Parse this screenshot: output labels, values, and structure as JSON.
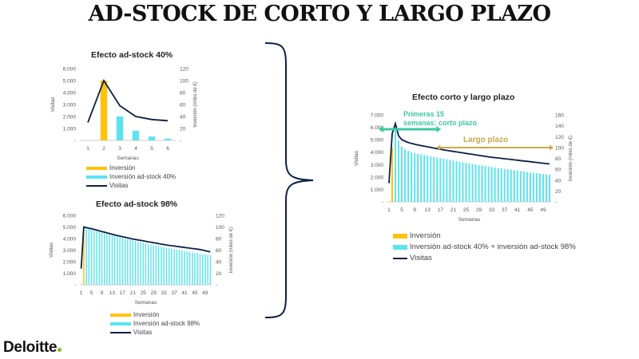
{
  "title": "AD-STOCK DE CORTO Y LARGO PLAZO",
  "logo": {
    "text": "Deloitte"
  },
  "colors": {
    "investment": "#FFC20E",
    "adstock": "#5BE3F0",
    "visits": "#0D1F45",
    "short": "#3CC8A0",
    "long": "#C8A84B"
  },
  "chart_data": [
    {
      "id": "c1",
      "type": "bar",
      "title": "Efecto ad-stock 40%",
      "xlabel": "Semanas",
      "ylabel": "Visitas",
      "y2label": "Inversión (miles de €)",
      "ylim": [
        0,
        6000
      ],
      "y2lim": [
        0,
        120
      ],
      "yticks": [
        "-",
        "1.000",
        "2.000",
        "3.000",
        "4.000",
        "5.000",
        "6.000"
      ],
      "y2ticks": [
        "-",
        "20",
        "40",
        "60",
        "80",
        "100",
        "120"
      ],
      "x": [
        1,
        2,
        3,
        4,
        5,
        6
      ],
      "xticks": [
        "1",
        "2",
        "3",
        "4",
        "5",
        "6"
      ],
      "series": [
        {
          "name": "Inversión",
          "axis": "right",
          "kind": "bar",
          "values": [
            0,
            100,
            0,
            0,
            0,
            0
          ]
        },
        {
          "name": "Inversión ad-stock 40%",
          "axis": "right",
          "kind": "bar",
          "values": [
            0,
            0,
            40,
            16,
            6.4,
            2.6
          ]
        },
        {
          "name": "Visitas",
          "axis": "left",
          "kind": "line",
          "values": [
            1500,
            5000,
            2900,
            2000,
            1750,
            1650
          ]
        }
      ]
    },
    {
      "id": "c2",
      "type": "bar",
      "title": "Efecto ad-stock 98%",
      "xlabel": "Semanas",
      "ylabel": "Visitas",
      "y2label": "Inversión (miles de €)",
      "ylim": [
        0,
        6000
      ],
      "y2lim": [
        0,
        120
      ],
      "yticks": [
        "-",
        "1.000",
        "2.000",
        "3.000",
        "4.000",
        "5.000",
        "6.000"
      ],
      "y2ticks": [
        "-",
        "20",
        "40",
        "60",
        "80",
        "100",
        "120"
      ],
      "xticks": [
        "1",
        "5",
        "9",
        "13",
        "17",
        "21",
        "25",
        "29",
        "33",
        "37",
        "41",
        "45",
        "49"
      ],
      "nweeks": 51,
      "series": [
        {
          "name": "Inversión",
          "axis": "right",
          "kind": "bar",
          "values": [
            0,
            100
          ]
        },
        {
          "name": "Inversión ad-stock 98%",
          "axis": "right",
          "kind": "bar",
          "start": 3,
          "first": 98,
          "decay": 0.9865
        },
        {
          "name": "Visitas",
          "axis": "left",
          "kind": "line",
          "values": [
            1400,
            5000,
            4950,
            4900,
            4850,
            4790,
            4730,
            4670,
            4610,
            4550,
            4490,
            4430,
            4370,
            4310,
            4260,
            4210,
            4160,
            4110,
            4060,
            4010,
            3960,
            3920,
            3880,
            3840,
            3800,
            3760,
            3720,
            3680,
            3640,
            3600,
            3560,
            3520,
            3480,
            3440,
            3410,
            3380,
            3350,
            3320,
            3290,
            3260,
            3230,
            3200,
            3170,
            3140,
            3110,
            3080,
            3050,
            3000,
            2950,
            2900,
            2850
          ]
        }
      ]
    },
    {
      "id": "c3",
      "type": "bar",
      "title": "Efecto corto y largo plazo",
      "xlabel": "Semanas",
      "ylabel": "Visitas",
      "y2label": "Inversión (miles de €)",
      "ylim": [
        0,
        7000
      ],
      "y2lim": [
        0,
        160
      ],
      "yticks": [
        "-",
        "1.000",
        "2.000",
        "3.000",
        "4.000",
        "5.000",
        "6.000",
        "7.000"
      ],
      "y2ticks": [
        "-",
        "20",
        "40",
        "60",
        "80",
        "100",
        "120",
        "140",
        "160"
      ],
      "xticks": [
        "1",
        "5",
        "9",
        "13",
        "17",
        "21",
        "25",
        "29",
        "33",
        "37",
        "41",
        "45",
        "49"
      ],
      "nweeks": 51,
      "series": [
        {
          "name": "Inversión",
          "axis": "right",
          "kind": "bar",
          "values": [
            0,
            100
          ]
        },
        {
          "name": "Inversión ad-stock 40% + inversión ad-stock 98%",
          "axis": "right",
          "kind": "bar",
          "start": 3,
          "first": 138,
          "decay": 0.986,
          "short": [
            40,
            16,
            6.4,
            2.6,
            1
          ]
        },
        {
          "name": "Visitas",
          "axis": "left",
          "kind": "line",
          "values": [
            1500,
            5500,
            6300,
            5300,
            5000,
            4880,
            4780,
            4700,
            4640,
            4580,
            4530,
            4480,
            4430,
            4380,
            4330,
            4280,
            4230,
            4180,
            4140,
            4100,
            4060,
            4020,
            3980,
            3940,
            3900,
            3860,
            3820,
            3780,
            3740,
            3700,
            3660,
            3620,
            3590,
            3560,
            3530,
            3500,
            3470,
            3440,
            3410,
            3380,
            3350,
            3320,
            3290,
            3260,
            3230,
            3200,
            3170,
            3140,
            3110,
            3080,
            3050
          ]
        }
      ],
      "annotations": [
        {
          "text": "Primeras 15 semanas: corto plazo",
          "line1": "Primeras 15",
          "line2": "semanas: corto plazo"
        },
        {
          "text": "Largo plazo"
        }
      ]
    }
  ]
}
